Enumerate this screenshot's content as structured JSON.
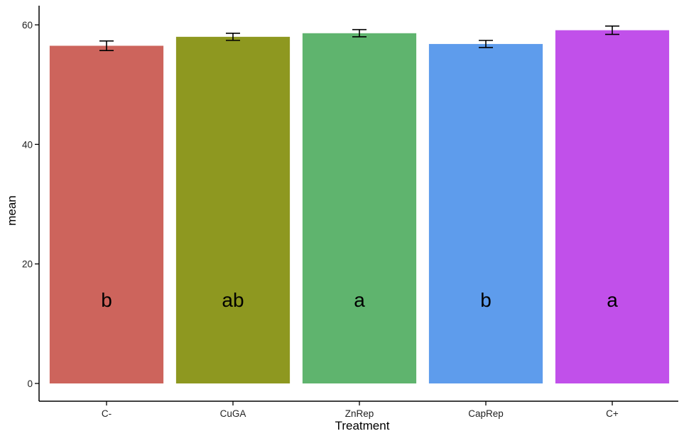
{
  "chart_data": {
    "type": "bar",
    "title": "",
    "xlabel": "Treatment",
    "ylabel": "mean",
    "ylim": [
      0,
      63
    ],
    "yticks": [
      0,
      20,
      40,
      60
    ],
    "grid": false,
    "legend": "none",
    "categories": [
      "C-",
      "CuGA",
      "ZnRep",
      "CapRep",
      "C+"
    ],
    "values": [
      56.5,
      58.0,
      58.6,
      56.8,
      59.1
    ],
    "error": [
      0.8,
      0.6,
      0.6,
      0.6,
      0.7
    ],
    "labels": [
      "b",
      "ab",
      "a",
      "b",
      "a"
    ],
    "label_y": 14,
    "colors": [
      "#CD645C",
      "#8E9820",
      "#5FB46E",
      "#5E9CEC",
      "#C150EA"
    ]
  }
}
